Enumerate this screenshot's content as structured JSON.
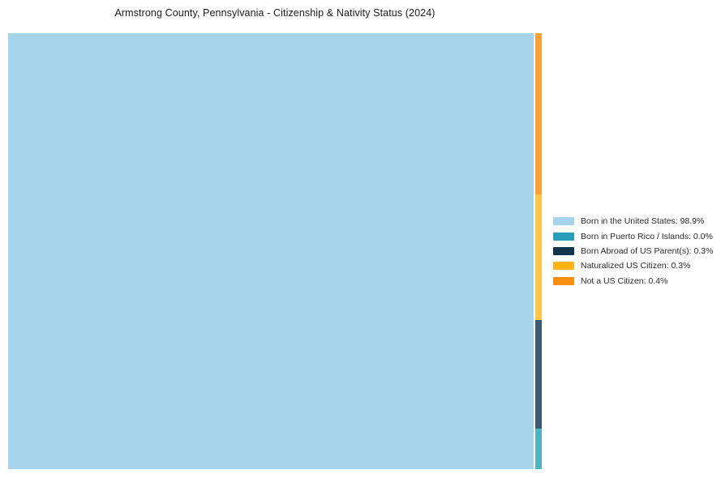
{
  "chart_data": {
    "type": "treemap",
    "title": "Armstrong County, Pennsylvania - Citizenship & Nativity Status (2024)",
    "units": "%",
    "categories": [
      "Born in the United States",
      "Born in Puerto Rico / Islands",
      "Born Abroad of US Parent(s)",
      "Naturalized US Citizen",
      "Not a US Citizen"
    ],
    "values": [
      98.9,
      0.0,
      0.3,
      0.3,
      0.4
    ],
    "legend_position": "right",
    "legend_labels": [
      "Born in the United States: 98.9%",
      "Born in Puerto Rico / Islands: 0.0%",
      "Born Abroad of US Parent(s): 0.3%",
      "Naturalized US Citizen: 0.3%",
      "Not a US Citizen: 0.4%"
    ],
    "colors": [
      "#a6d4ea",
      "#2a9db8",
      "#12344e",
      "#fdb515",
      "#f78e0f"
    ],
    "layout": {
      "main_tile": {
        "category": "Born in the United States",
        "value": 98.9,
        "color": "#a6d4ea"
      },
      "strip_tiles": [
        {
          "category": "Not a US Citizen",
          "value": 0.4,
          "color": "#f9a139",
          "height_pct": 37.0
        },
        {
          "category": "Naturalized US Citizen",
          "value": 0.3,
          "color": "#fdc74a",
          "height_pct": 28.8
        },
        {
          "category": "Born Abroad of US Parent(s)",
          "value": 0.3,
          "color": "#3d5a74",
          "height_pct": 24.9
        },
        {
          "category": "Born in Puerto Rico / Islands",
          "value": 0.0,
          "color": "#4fb3c6",
          "height_pct": 9.3
        }
      ]
    }
  },
  "legend": {
    "items": [
      {
        "label": "Born in the United States: 98.9%",
        "color": "#a6d4ea"
      },
      {
        "label": "Born in Puerto Rico / Islands: 0.0%",
        "color": "#2a9db8"
      },
      {
        "label": "Born Abroad of US Parent(s): 0.3%",
        "color": "#12344e"
      },
      {
        "label": "Naturalized US Citizen: 0.3%",
        "color": "#fdb515"
      },
      {
        "label": "Not a US Citizen: 0.4%",
        "color": "#f78e0f"
      }
    ]
  }
}
